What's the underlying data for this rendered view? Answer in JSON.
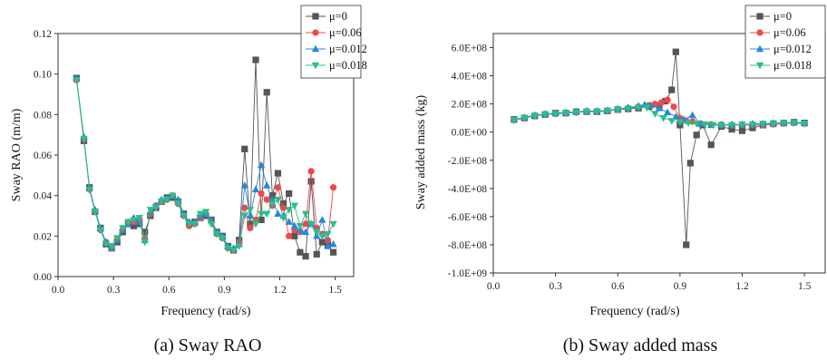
{
  "chart_data": [
    {
      "type": "line",
      "title": "",
      "caption": "(a) Sway RAO",
      "xlabel": "Frequency (rad/s)",
      "ylabel": "Sway RAO (m/m)",
      "xlim": [
        0.0,
        1.6
      ],
      "ylim": [
        0.0,
        0.12
      ],
      "xticks": [
        "0.0",
        "0.3",
        "0.6",
        "0.9",
        "1.2",
        "1.5"
      ],
      "yticks": [
        "0.00",
        "0.02",
        "0.04",
        "0.06",
        "0.08",
        "0.10",
        "0.12"
      ],
      "grid": false,
      "legend_position": "top-right",
      "series": [
        {
          "name": "μ=0",
          "color": "#555555",
          "marker": "square",
          "x": [
            0.1,
            0.14,
            0.17,
            0.2,
            0.23,
            0.26,
            0.29,
            0.32,
            0.35,
            0.38,
            0.41,
            0.44,
            0.47,
            0.5,
            0.53,
            0.56,
            0.59,
            0.62,
            0.65,
            0.68,
            0.71,
            0.74,
            0.77,
            0.8,
            0.83,
            0.86,
            0.89,
            0.92,
            0.95,
            0.98,
            1.01,
            1.04,
            1.07,
            1.1,
            1.13,
            1.16,
            1.19,
            1.22,
            1.25,
            1.28,
            1.31,
            1.34,
            1.37,
            1.4,
            1.43,
            1.46,
            1.49
          ],
          "y": [
            0.098,
            0.067,
            0.044,
            0.032,
            0.024,
            0.016,
            0.014,
            0.017,
            0.022,
            0.026,
            0.025,
            0.026,
            0.022,
            0.03,
            0.034,
            0.037,
            0.039,
            0.039,
            0.037,
            0.031,
            0.026,
            0.027,
            0.029,
            0.03,
            0.028,
            0.022,
            0.02,
            0.015,
            0.013,
            0.018,
            0.063,
            0.026,
            0.107,
            0.028,
            0.091,
            0.04,
            0.051,
            0.036,
            0.041,
            0.02,
            0.012,
            0.01,
            0.047,
            0.011,
            0.017,
            0.016,
            0.012
          ]
        },
        {
          "name": "μ=0.06",
          "color": "#f04848",
          "marker": "circle",
          "x": [
            0.1,
            0.14,
            0.17,
            0.2,
            0.23,
            0.26,
            0.29,
            0.32,
            0.35,
            0.38,
            0.41,
            0.44,
            0.47,
            0.5,
            0.53,
            0.56,
            0.59,
            0.62,
            0.65,
            0.68,
            0.71,
            0.74,
            0.77,
            0.8,
            0.83,
            0.86,
            0.89,
            0.92,
            0.95,
            0.98,
            1.01,
            1.04,
            1.07,
            1.1,
            1.13,
            1.16,
            1.19,
            1.22,
            1.25,
            1.28,
            1.31,
            1.34,
            1.37,
            1.4,
            1.43,
            1.46,
            1.49
          ],
          "y": [
            0.097,
            0.068,
            0.043,
            0.032,
            0.023,
            0.017,
            0.015,
            0.018,
            0.023,
            0.027,
            0.027,
            0.028,
            0.019,
            0.031,
            0.035,
            0.037,
            0.038,
            0.04,
            0.036,
            0.03,
            0.025,
            0.026,
            0.029,
            0.031,
            0.027,
            0.021,
            0.019,
            0.014,
            0.013,
            0.017,
            0.034,
            0.024,
            0.028,
            0.041,
            0.038,
            0.035,
            0.044,
            0.034,
            0.02,
            0.023,
            0.022,
            0.026,
            0.052,
            0.024,
            0.021,
            0.018,
            0.044
          ]
        },
        {
          "name": "μ=0.012",
          "color": "#2b86d6",
          "marker": "triangle-up",
          "x": [
            0.1,
            0.14,
            0.17,
            0.2,
            0.23,
            0.26,
            0.29,
            0.32,
            0.35,
            0.38,
            0.41,
            0.44,
            0.47,
            0.5,
            0.53,
            0.56,
            0.59,
            0.62,
            0.65,
            0.68,
            0.71,
            0.74,
            0.77,
            0.8,
            0.83,
            0.86,
            0.89,
            0.92,
            0.95,
            0.98,
            1.01,
            1.04,
            1.07,
            1.1,
            1.13,
            1.16,
            1.19,
            1.22,
            1.25,
            1.28,
            1.31,
            1.34,
            1.37,
            1.4,
            1.43,
            1.46,
            1.49
          ],
          "y": [
            0.098,
            0.069,
            0.044,
            0.033,
            0.024,
            0.017,
            0.014,
            0.018,
            0.023,
            0.026,
            0.029,
            0.027,
            0.018,
            0.032,
            0.035,
            0.038,
            0.039,
            0.04,
            0.038,
            0.031,
            0.027,
            0.027,
            0.03,
            0.031,
            0.028,
            0.022,
            0.02,
            0.015,
            0.014,
            0.016,
            0.045,
            0.03,
            0.043,
            0.055,
            0.045,
            0.038,
            0.031,
            0.03,
            0.027,
            0.025,
            0.023,
            0.022,
            0.026,
            0.02,
            0.028,
            0.015,
            0.016
          ]
        },
        {
          "name": "μ=0.018",
          "color": "#28c08a",
          "marker": "triangle-down",
          "x": [
            0.1,
            0.14,
            0.17,
            0.2,
            0.23,
            0.26,
            0.29,
            0.32,
            0.35,
            0.38,
            0.41,
            0.44,
            0.47,
            0.5,
            0.53,
            0.56,
            0.59,
            0.62,
            0.65,
            0.68,
            0.71,
            0.74,
            0.77,
            0.8,
            0.83,
            0.86,
            0.89,
            0.92,
            0.95,
            0.98,
            1.01,
            1.04,
            1.07,
            1.1,
            1.13,
            1.16,
            1.19,
            1.22,
            1.25,
            1.28,
            1.31,
            1.34,
            1.37,
            1.4,
            1.43,
            1.46,
            1.49
          ],
          "y": [
            0.097,
            0.068,
            0.043,
            0.032,
            0.023,
            0.016,
            0.015,
            0.019,
            0.024,
            0.027,
            0.028,
            0.029,
            0.017,
            0.033,
            0.034,
            0.037,
            0.038,
            0.04,
            0.036,
            0.03,
            0.026,
            0.026,
            0.031,
            0.032,
            0.026,
            0.021,
            0.019,
            0.014,
            0.013,
            0.015,
            0.03,
            0.033,
            0.026,
            0.031,
            0.031,
            0.036,
            0.038,
            0.029,
            0.033,
            0.035,
            0.025,
            0.031,
            0.026,
            0.022,
            0.02,
            0.021,
            0.026
          ]
        }
      ]
    },
    {
      "type": "line",
      "title": "",
      "caption": "(b) Sway added mass",
      "xlabel": "Frequency (rad/s)",
      "ylabel": "Sway added mass (kg)",
      "xlim": [
        0.0,
        1.6
      ],
      "ylim": [
        -1000000000.0,
        700000000.0
      ],
      "xticks": [
        "0.0",
        "0.3",
        "0.6",
        "0.9",
        "1.2",
        "1.5"
      ],
      "yticks": [
        "-1.0E+09",
        "-8.0E+08",
        "-6.0E+08",
        "-4.0E+08",
        "-2.0E+08",
        "0.0E+00",
        "2.0E+08",
        "4.0E+08",
        "6.0E+08"
      ],
      "grid": false,
      "legend_position": "top-right",
      "series": [
        {
          "name": "μ=0",
          "color": "#555555",
          "marker": "square",
          "x": [
            0.1,
            0.15,
            0.2,
            0.25,
            0.3,
            0.35,
            0.4,
            0.45,
            0.5,
            0.55,
            0.6,
            0.65,
            0.7,
            0.75,
            0.8,
            0.83,
            0.86,
            0.88,
            0.9,
            0.93,
            0.95,
            0.98,
            1.01,
            1.05,
            1.1,
            1.15,
            1.2,
            1.25,
            1.3,
            1.35,
            1.4,
            1.45,
            1.5
          ],
          "y": [
            90000000.0,
            100000000.0,
            115000000.0,
            125000000.0,
            135000000.0,
            135000000.0,
            145000000.0,
            145000000.0,
            145000000.0,
            150000000.0,
            160000000.0,
            165000000.0,
            170000000.0,
            180000000.0,
            190000000.0,
            220000000.0,
            300000000.0,
            570000000.0,
            50000000.0,
            -800000000.0,
            -220000000.0,
            -20000000.0,
            50000000.0,
            -90000000.0,
            40000000.0,
            20000000.0,
            10000000.0,
            30000000.0,
            50000000.0,
            60000000.0,
            65000000.0,
            70000000.0,
            65000000.0
          ]
        },
        {
          "name": "μ=0.06",
          "color": "#f04848",
          "marker": "circle",
          "x": [
            0.1,
            0.15,
            0.2,
            0.25,
            0.3,
            0.35,
            0.4,
            0.45,
            0.5,
            0.55,
            0.6,
            0.65,
            0.7,
            0.75,
            0.78,
            0.81,
            0.84,
            0.87,
            0.9,
            0.93,
            0.96,
            1.0,
            1.05,
            1.1,
            1.15,
            1.2,
            1.25,
            1.3,
            1.35,
            1.4,
            1.45,
            1.5
          ],
          "y": [
            85000000.0,
            100000000.0,
            115000000.0,
            125000000.0,
            130000000.0,
            135000000.0,
            140000000.0,
            145000000.0,
            145000000.0,
            150000000.0,
            160000000.0,
            170000000.0,
            180000000.0,
            190000000.0,
            200000000.0,
            210000000.0,
            230000000.0,
            180000000.0,
            100000000.0,
            80000000.0,
            75000000.0,
            60000000.0,
            55000000.0,
            55000000.0,
            50000000.0,
            50000000.0,
            50000000.0,
            50000000.0,
            55000000.0,
            60000000.0,
            65000000.0,
            60000000.0
          ]
        },
        {
          "name": "μ=0.012",
          "color": "#2b86d6",
          "marker": "triangle-up",
          "x": [
            0.1,
            0.15,
            0.2,
            0.25,
            0.3,
            0.35,
            0.4,
            0.45,
            0.5,
            0.55,
            0.6,
            0.65,
            0.7,
            0.73,
            0.76,
            0.8,
            0.84,
            0.88,
            0.92,
            0.96,
            1.0,
            1.05,
            1.1,
            1.15,
            1.2,
            1.25,
            1.3,
            1.35,
            1.4,
            1.45,
            1.5
          ],
          "y": [
            90000000.0,
            105000000.0,
            120000000.0,
            130000000.0,
            135000000.0,
            140000000.0,
            145000000.0,
            150000000.0,
            150000000.0,
            155000000.0,
            165000000.0,
            175000000.0,
            185000000.0,
            195000000.0,
            190000000.0,
            170000000.0,
            140000000.0,
            110000000.0,
            90000000.0,
            120000000.0,
            60000000.0,
            50000000.0,
            50000000.0,
            55000000.0,
            55000000.0,
            60000000.0,
            60000000.0,
            65000000.0,
            65000000.0,
            70000000.0,
            65000000.0
          ]
        },
        {
          "name": "μ=0.018",
          "color": "#28c08a",
          "marker": "triangle-down",
          "x": [
            0.1,
            0.15,
            0.2,
            0.25,
            0.3,
            0.35,
            0.4,
            0.45,
            0.5,
            0.55,
            0.6,
            0.65,
            0.7,
            0.74,
            0.78,
            0.82,
            0.86,
            0.9,
            0.94,
            0.98,
            1.02,
            1.06,
            1.1,
            1.15,
            1.2,
            1.25,
            1.3,
            1.35,
            1.4,
            1.45,
            1.5
          ],
          "y": [
            85000000.0,
            100000000.0,
            115000000.0,
            125000000.0,
            130000000.0,
            135000000.0,
            140000000.0,
            145000000.0,
            145000000.0,
            150000000.0,
            160000000.0,
            165000000.0,
            175000000.0,
            175000000.0,
            130000000.0,
            100000000.0,
            80000000.0,
            70000000.0,
            65000000.0,
            60000000.0,
            55000000.0,
            50000000.0,
            50000000.0,
            50000000.0,
            55000000.0,
            55000000.0,
            60000000.0,
            60000000.0,
            65000000.0,
            65000000.0,
            60000000.0
          ]
        }
      ]
    }
  ]
}
